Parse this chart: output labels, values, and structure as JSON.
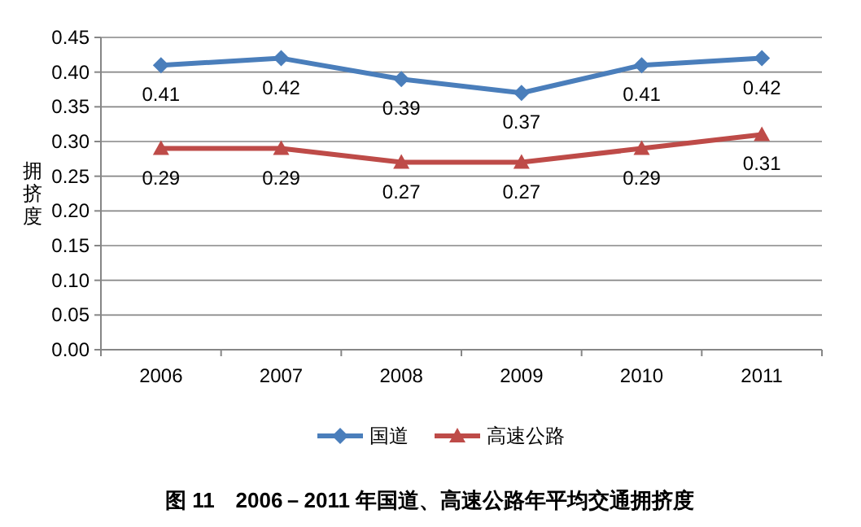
{
  "chart_data": {
    "type": "line",
    "title": "图 11　2006－2011 年国道、高速公路年平均交通拥挤度",
    "ylabel": "拥挤度",
    "categories": [
      "2006",
      "2007",
      "2008",
      "2009",
      "2010",
      "2011"
    ],
    "series": [
      {
        "name": "国道",
        "color": "#4a7ebb",
        "marker": "diamond",
        "values": [
          0.41,
          0.42,
          0.39,
          0.37,
          0.41,
          0.42
        ]
      },
      {
        "name": "高速公路",
        "color": "#be4b48",
        "marker": "triangle",
        "values": [
          0.29,
          0.29,
          0.27,
          0.27,
          0.29,
          0.31
        ]
      }
    ],
    "ylim": [
      0,
      0.45
    ],
    "yticks": [
      {
        "value": 0,
        "label": "0.00"
      },
      {
        "value": 0.05,
        "label": "0.05"
      },
      {
        "value": 0.1,
        "label": "0.10"
      },
      {
        "value": 0.15,
        "label": "0.15"
      },
      {
        "value": 0.2,
        "label": "0.20"
      },
      {
        "value": 0.25,
        "label": "0.25"
      },
      {
        "value": 0.3,
        "label": "0.30"
      },
      {
        "value": 0.35,
        "label": "0.35"
      },
      {
        "value": 0.4,
        "label": "0.40"
      },
      {
        "value": 0.45,
        "label": "0.45"
      }
    ],
    "grid": "y",
    "legend": "bottom",
    "data_labels": true,
    "line_style": "solid"
  }
}
